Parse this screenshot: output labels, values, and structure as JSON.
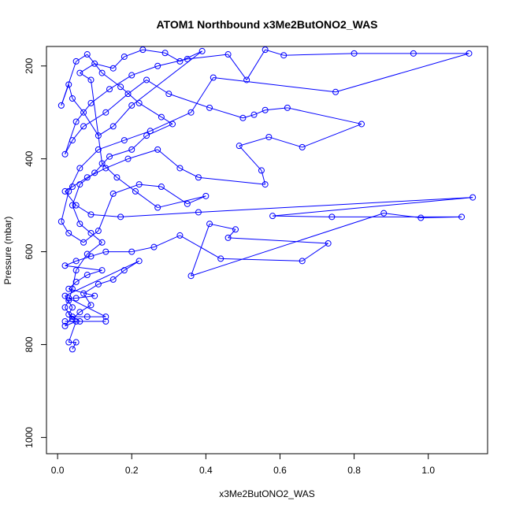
{
  "chart_data": {
    "type": "line",
    "title": "ATOM1 Northbound x3Me2ButONO2_WAS",
    "xlabel": "x3Me2ButONO2_WAS",
    "ylabel": "Pressure (mbar)",
    "xlim": [
      -0.03,
      1.16
    ],
    "ylim": [
      1035,
      158
    ],
    "y_reversed": true,
    "x_ticks": [
      0.0,
      0.2,
      0.4,
      0.6,
      0.8,
      1.0
    ],
    "x_tick_labels": [
      "0.0",
      "0.2",
      "0.4",
      "0.6",
      "0.8",
      "1.0"
    ],
    "y_ticks": [
      200,
      400,
      600,
      800,
      1000
    ],
    "y_tick_labels": [
      "200",
      "400",
      "600",
      "800",
      "1000"
    ],
    "grid": false,
    "series": [
      {
        "color": "#0000ff",
        "marker": "open-circle",
        "points": [
          [
            0.04,
            810
          ],
          [
            0.05,
            795
          ],
          [
            0.03,
            795
          ],
          [
            0.05,
            750
          ],
          [
            0.02,
            760
          ],
          [
            0.04,
            740
          ],
          [
            0.08,
            740
          ],
          [
            0.13,
            740
          ],
          [
            0.03,
            700
          ],
          [
            0.05,
            700
          ],
          [
            0.1,
            695
          ],
          [
            0.03,
            680
          ],
          [
            0.05,
            665
          ],
          [
            0.08,
            650
          ],
          [
            0.12,
            640
          ],
          [
            0.02,
            630
          ],
          [
            0.05,
            620
          ],
          [
            0.09,
            610
          ],
          [
            0.13,
            600
          ],
          [
            0.2,
            600
          ],
          [
            0.26,
            590
          ],
          [
            0.33,
            565
          ],
          [
            0.44,
            615
          ],
          [
            0.66,
            620
          ],
          [
            0.73,
            582
          ],
          [
            0.46,
            570
          ],
          [
            0.48,
            552
          ],
          [
            0.41,
            540
          ],
          [
            0.36,
            652
          ],
          [
            0.88,
            517
          ],
          [
            0.98,
            527
          ],
          [
            1.09,
            525
          ],
          [
            0.74,
            525
          ],
          [
            0.58,
            523
          ],
          [
            1.12,
            483
          ],
          [
            0.38,
            515
          ],
          [
            0.17,
            525
          ],
          [
            0.09,
            520
          ],
          [
            0.05,
            500
          ],
          [
            0.02,
            470
          ],
          [
            0.04,
            460
          ],
          [
            0.08,
            440
          ],
          [
            0.13,
            420
          ],
          [
            0.19,
            400
          ],
          [
            0.27,
            380
          ],
          [
            0.33,
            420
          ],
          [
            0.38,
            440
          ],
          [
            0.56,
            455
          ],
          [
            0.55,
            425
          ],
          [
            0.49,
            372
          ],
          [
            0.57,
            353
          ],
          [
            0.66,
            375
          ],
          [
            0.82,
            325
          ],
          [
            0.62,
            290
          ],
          [
            0.56,
            295
          ],
          [
            0.53,
            305
          ],
          [
            0.5,
            312
          ],
          [
            0.41,
            290
          ],
          [
            0.3,
            260
          ],
          [
            0.24,
            230
          ],
          [
            0.19,
            260
          ],
          [
            0.13,
            300
          ],
          [
            0.07,
            330
          ],
          [
            0.04,
            360
          ],
          [
            0.02,
            390
          ],
          [
            0.05,
            320
          ],
          [
            0.09,
            280
          ],
          [
            0.14,
            250
          ],
          [
            0.2,
            220
          ],
          [
            0.27,
            200
          ],
          [
            0.35,
            185
          ],
          [
            0.46,
            175
          ],
          [
            0.51,
            230
          ],
          [
            0.56,
            165
          ],
          [
            0.61,
            177
          ],
          [
            0.8,
            173
          ],
          [
            0.96,
            173
          ],
          [
            1.11,
            173
          ],
          [
            0.75,
            256
          ],
          [
            0.42,
            225
          ],
          [
            0.36,
            300
          ],
          [
            0.25,
            340
          ],
          [
            0.18,
            360
          ],
          [
            0.11,
            380
          ],
          [
            0.06,
            420
          ],
          [
            0.03,
            470
          ],
          [
            0.01,
            535
          ],
          [
            0.03,
            560
          ],
          [
            0.07,
            580
          ],
          [
            0.11,
            555
          ],
          [
            0.15,
            475
          ],
          [
            0.22,
            455
          ],
          [
            0.28,
            460
          ],
          [
            0.35,
            497
          ],
          [
            0.4,
            480
          ],
          [
            0.27,
            505
          ],
          [
            0.21,
            470
          ],
          [
            0.16,
            440
          ],
          [
            0.12,
            410
          ],
          [
            0.09,
            230
          ],
          [
            0.06,
            215
          ],
          [
            0.1,
            195
          ],
          [
            0.15,
            205
          ],
          [
            0.18,
            180
          ],
          [
            0.23,
            165
          ],
          [
            0.29,
            172
          ],
          [
            0.33,
            190
          ],
          [
            0.39,
            168
          ],
          [
            0.2,
            285
          ],
          [
            0.15,
            330
          ],
          [
            0.11,
            350
          ],
          [
            0.07,
            300
          ],
          [
            0.04,
            270
          ],
          [
            0.03,
            240
          ],
          [
            0.01,
            285
          ],
          [
            0.05,
            190
          ],
          [
            0.08,
            175
          ],
          [
            0.12,
            215
          ],
          [
            0.17,
            245
          ],
          [
            0.22,
            280
          ],
          [
            0.28,
            310
          ],
          [
            0.31,
            325
          ],
          [
            0.24,
            350
          ],
          [
            0.2,
            380
          ],
          [
            0.14,
            395
          ],
          [
            0.1,
            430
          ],
          [
            0.06,
            455
          ],
          [
            0.04,
            500
          ],
          [
            0.06,
            540
          ],
          [
            0.09,
            560
          ],
          [
            0.12,
            580
          ],
          [
            0.08,
            605
          ],
          [
            0.05,
            640
          ],
          [
            0.04,
            680
          ],
          [
            0.03,
            705
          ],
          [
            0.02,
            720
          ],
          [
            0.04,
            745
          ],
          [
            0.06,
            730
          ],
          [
            0.09,
            715
          ],
          [
            0.07,
            690
          ],
          [
            0.11,
            670
          ],
          [
            0.15,
            660
          ],
          [
            0.18,
            640
          ],
          [
            0.22,
            620
          ],
          [
            0.02,
            695
          ],
          [
            0.04,
            720
          ],
          [
            0.03,
            735
          ],
          [
            0.06,
            750
          ],
          [
            0.13,
            750
          ],
          [
            0.02,
            750
          ]
        ]
      }
    ]
  }
}
